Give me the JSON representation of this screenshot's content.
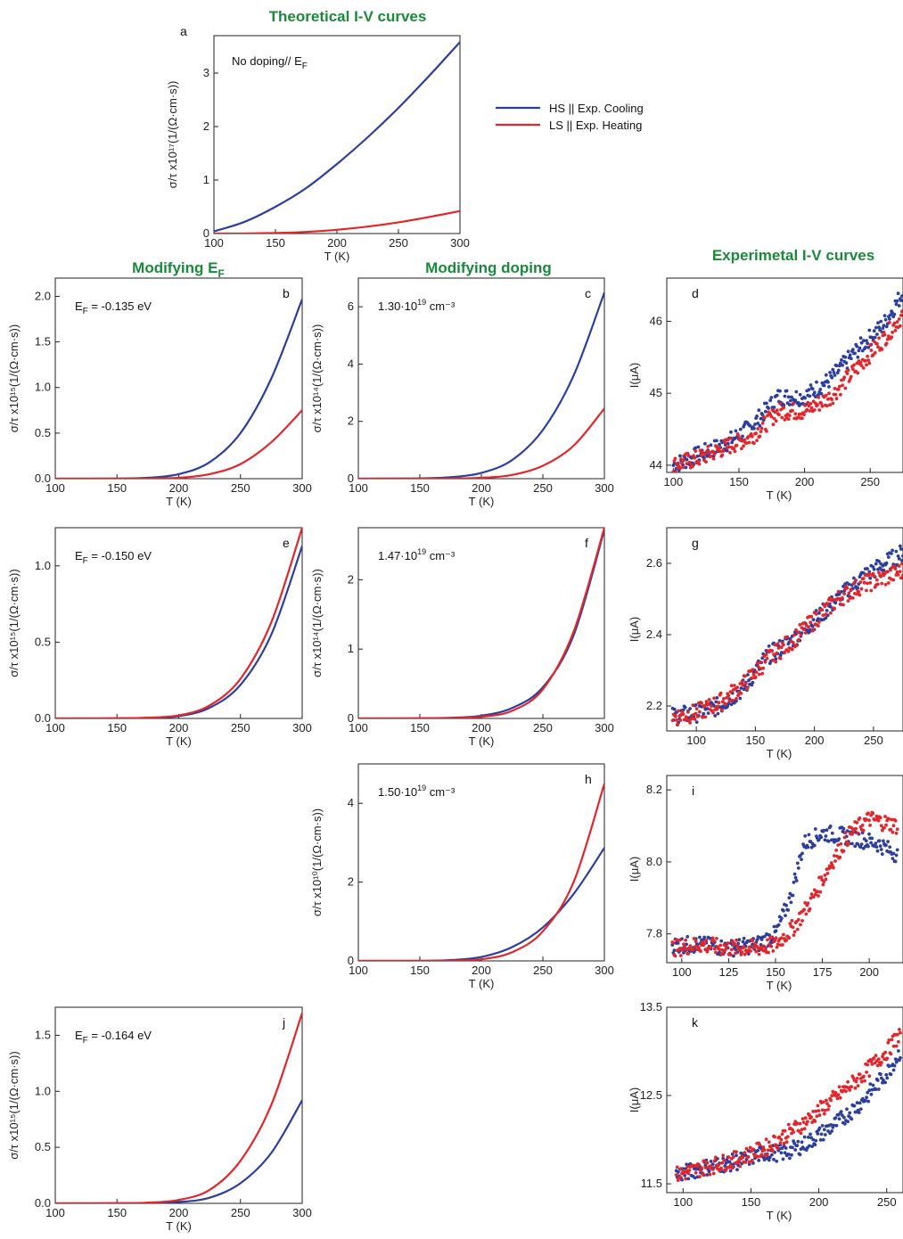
{
  "titles": {
    "theoretical": "Theoretical I-V curves",
    "modifying_ef": "Modifying E",
    "modifying_ef_sub": "F",
    "modifying_doping": "Modifying doping",
    "experimental": "Experimetal I-V curves"
  },
  "legend": {
    "hs": "HS  || Exp. Cooling",
    "ls": "LS  || Exp. Heating",
    "hs_color": "#2c3f9e",
    "ls_color": "#e3262b"
  },
  "chart_data": [
    {
      "id": "a",
      "type": "line",
      "label": "a",
      "annotation": "No doping// E",
      "annotation_sub": "F",
      "xlabel": "T (K)",
      "ylabel": "σ/τ x10¹⁷(1/(Ω·cm·s))",
      "xlim": [
        100,
        300
      ],
      "ylim": [
        0,
        3.7
      ],
      "xticks": [
        100,
        150,
        200,
        250,
        300
      ],
      "yticks": [
        0,
        1,
        2,
        3
      ],
      "series": [
        {
          "name": "HS",
          "color": "#2c3f9e",
          "x": [
            100,
            125,
            150,
            175,
            200,
            225,
            250,
            275,
            300
          ],
          "y": [
            0.04,
            0.22,
            0.5,
            0.85,
            1.3,
            1.8,
            2.35,
            2.95,
            3.58
          ]
        },
        {
          "name": "LS",
          "color": "#e3262b",
          "x": [
            100,
            125,
            150,
            175,
            200,
            225,
            250,
            275,
            300
          ],
          "y": [
            0.0,
            0.0,
            0.01,
            0.03,
            0.07,
            0.13,
            0.21,
            0.31,
            0.42
          ]
        }
      ]
    },
    {
      "id": "b",
      "type": "line",
      "label": "b",
      "annotation": "E",
      "annotation_sub": "F",
      "annotation_rest": " = -0.135 eV",
      "xlabel": "T (K)",
      "ylabel": "σ/τ x10¹⁵(1/(Ω·cm·s))",
      "xlim": [
        100,
        300
      ],
      "ylim": [
        0,
        2.2
      ],
      "xticks": [
        100,
        150,
        200,
        250,
        300
      ],
      "yticks": [
        0.0,
        0.5,
        1.0,
        1.5,
        2.0
      ],
      "series": [
        {
          "name": "HS",
          "color": "#2c3f9e",
          "x": [
            100,
            150,
            175,
            200,
            225,
            250,
            275,
            300
          ],
          "y": [
            0,
            0.002,
            0.01,
            0.05,
            0.18,
            0.5,
            1.1,
            1.97
          ]
        },
        {
          "name": "LS",
          "color": "#e3262b",
          "x": [
            100,
            150,
            175,
            200,
            225,
            250,
            275,
            300
          ],
          "y": [
            0,
            0,
            0.002,
            0.01,
            0.05,
            0.16,
            0.4,
            0.75
          ]
        }
      ]
    },
    {
      "id": "c",
      "type": "line",
      "label": "c",
      "annotation": "1.30·10",
      "annotation_sup": "19",
      "annotation_rest": " cm⁻³",
      "xlabel": "T (K)",
      "ylabel": "σ/τ x10¹⁴(1/(Ω·cm·s))",
      "xlim": [
        100,
        300
      ],
      "ylim": [
        0,
        7
      ],
      "xticks": [
        100,
        150,
        200,
        250,
        300
      ],
      "yticks": [
        0,
        2,
        4,
        6
      ],
      "series": [
        {
          "name": "HS",
          "color": "#2c3f9e",
          "x": [
            100,
            150,
            175,
            200,
            225,
            250,
            275,
            300
          ],
          "y": [
            0,
            0.01,
            0.05,
            0.2,
            0.65,
            1.7,
            3.6,
            6.5
          ]
        },
        {
          "name": "LS",
          "color": "#e3262b",
          "x": [
            100,
            150,
            175,
            200,
            225,
            250,
            275,
            300
          ],
          "y": [
            0,
            0,
            0.005,
            0.03,
            0.13,
            0.45,
            1.15,
            2.45
          ]
        }
      ]
    },
    {
      "id": "d",
      "type": "scatter",
      "label": "d",
      "xlabel": "T (K)",
      "ylabel": "I(μA)",
      "xlim": [
        95,
        275
      ],
      "ylim": [
        43.9,
        46.6
      ],
      "xticks": [
        100,
        150,
        200,
        250
      ],
      "yticks": [
        44,
        45,
        46
      ],
      "series": [
        {
          "name": "HS",
          "color": "#2c3f9e",
          "x": [
            100,
            120,
            140,
            160,
            180,
            200,
            220,
            240,
            260,
            275
          ],
          "y": [
            44.0,
            44.15,
            44.3,
            44.55,
            44.95,
            44.95,
            45.2,
            45.6,
            45.95,
            46.4
          ]
        },
        {
          "name": "LS",
          "color": "#e3262b",
          "x": [
            100,
            120,
            140,
            160,
            180,
            200,
            220,
            240,
            260,
            275
          ],
          "y": [
            44.0,
            44.1,
            44.25,
            44.4,
            44.75,
            44.75,
            44.95,
            45.35,
            45.75,
            46.1
          ]
        }
      ]
    },
    {
      "id": "e",
      "type": "line",
      "label": "e",
      "annotation": "E",
      "annotation_sub": "F",
      "annotation_rest": " = -0.150 eV",
      "xlabel": "T (K)",
      "ylabel": "σ/τ x10¹⁵(1/(Ω·cm·s))",
      "xlim": [
        100,
        300
      ],
      "ylim": [
        0,
        1.25
      ],
      "xticks": [
        100,
        150,
        200,
        250,
        300
      ],
      "yticks": [
        0.0,
        0.5,
        1.0
      ],
      "series": [
        {
          "name": "HS",
          "color": "#2c3f9e",
          "x": [
            100,
            150,
            175,
            200,
            225,
            250,
            275,
            300
          ],
          "y": [
            0,
            0.001,
            0.004,
            0.015,
            0.07,
            0.22,
            0.55,
            1.13
          ]
        },
        {
          "name": "LS",
          "color": "#e3262b",
          "x": [
            100,
            150,
            175,
            200,
            225,
            250,
            275,
            300
          ],
          "y": [
            0,
            0.001,
            0.005,
            0.02,
            0.085,
            0.26,
            0.63,
            1.25
          ]
        }
      ]
    },
    {
      "id": "f",
      "type": "line",
      "label": "f",
      "annotation": "1.47·10",
      "annotation_sup": "19",
      "annotation_rest": " cm⁻³",
      "xlabel": "T (K)",
      "ylabel": "σ/τ x10¹⁴(1/(Ω·cm·s))",
      "xlim": [
        100,
        300
      ],
      "ylim": [
        0,
        2.75
      ],
      "xticks": [
        100,
        150,
        200,
        250,
        300
      ],
      "yticks": [
        0,
        1,
        2
      ],
      "series": [
        {
          "name": "HS",
          "color": "#2c3f9e",
          "x": [
            100,
            150,
            175,
            200,
            225,
            250,
            275,
            300
          ],
          "y": [
            0,
            0.002,
            0.01,
            0.04,
            0.15,
            0.45,
            1.2,
            2.72
          ]
        },
        {
          "name": "LS",
          "color": "#e3262b",
          "x": [
            100,
            150,
            175,
            200,
            225,
            250,
            275,
            300
          ],
          "y": [
            0,
            0.001,
            0.005,
            0.025,
            0.11,
            0.42,
            1.25,
            2.75
          ]
        }
      ]
    },
    {
      "id": "g",
      "type": "scatter",
      "label": "g",
      "xlabel": "T (K)",
      "ylabel": "I(μA)",
      "xlim": [
        75,
        275
      ],
      "ylim": [
        2.13,
        2.7
      ],
      "xticks": [
        100,
        150,
        200,
        250
      ],
      "yticks": [
        2.2,
        2.4,
        2.6
      ],
      "series": [
        {
          "name": "HS",
          "color": "#2c3f9e",
          "x": [
            80,
            100,
            120,
            140,
            160,
            180,
            200,
            220,
            240,
            260,
            275
          ],
          "y": [
            2.17,
            2.18,
            2.2,
            2.25,
            2.34,
            2.38,
            2.44,
            2.5,
            2.56,
            2.6,
            2.63
          ]
        },
        {
          "name": "LS",
          "color": "#e3262b",
          "x": [
            80,
            100,
            120,
            140,
            160,
            180,
            200,
            220,
            240,
            260,
            275
          ],
          "y": [
            2.17,
            2.18,
            2.21,
            2.26,
            2.33,
            2.38,
            2.44,
            2.5,
            2.54,
            2.56,
            2.58
          ]
        }
      ]
    },
    {
      "id": "h",
      "type": "line",
      "label": "h",
      "annotation": "1.50·10",
      "annotation_sup": "19",
      "annotation_rest": " cm⁻³",
      "xlabel": "T (K)",
      "ylabel": "σ/τ x10¹⁰(1/(Ω·cm·s))",
      "xlim": [
        100,
        300
      ],
      "ylim": [
        0,
        5
      ],
      "xticks": [
        100,
        150,
        200,
        250,
        300
      ],
      "yticks": [
        0,
        2,
        4
      ],
      "series": [
        {
          "name": "HS",
          "color": "#2c3f9e",
          "x": [
            100,
            150,
            175,
            200,
            225,
            250,
            275,
            300
          ],
          "y": [
            0,
            0.003,
            0.02,
            0.1,
            0.35,
            0.85,
            1.7,
            2.87
          ]
        },
        {
          "name": "LS",
          "color": "#e3262b",
          "x": [
            100,
            150,
            175,
            200,
            225,
            250,
            275,
            300
          ],
          "y": [
            0,
            0.001,
            0.005,
            0.04,
            0.22,
            0.75,
            2.0,
            4.5
          ]
        }
      ]
    },
    {
      "id": "i",
      "type": "scatter",
      "label": "i",
      "xlabel": "T (K)",
      "ylabel": "I(μA)",
      "xlim": [
        92,
        218
      ],
      "ylim": [
        7.72,
        8.24
      ],
      "xticks": [
        100,
        125,
        150,
        175,
        200
      ],
      "yticks": [
        7.8,
        8.0,
        8.2
      ],
      "series": [
        {
          "name": "HS",
          "color": "#2c3f9e",
          "x": [
            95,
            110,
            125,
            140,
            150,
            158,
            165,
            175,
            190,
            205,
            215
          ],
          "y": [
            7.77,
            7.77,
            7.76,
            7.77,
            7.8,
            7.9,
            8.05,
            8.08,
            8.07,
            8.05,
            8.02
          ]
        },
        {
          "name": "LS",
          "color": "#e3262b",
          "x": [
            95,
            110,
            125,
            140,
            150,
            160,
            170,
            180,
            190,
            200,
            215
          ],
          "y": [
            7.76,
            7.77,
            7.76,
            7.76,
            7.77,
            7.82,
            7.9,
            8.0,
            8.08,
            8.12,
            8.1
          ]
        }
      ]
    },
    {
      "id": "j",
      "type": "line",
      "label": "j",
      "annotation": "E",
      "annotation_sub": "F",
      "annotation_rest": " = -0.164 eV",
      "xlabel": "T (K)",
      "ylabel": "σ/τ x10¹⁵(1/(Ω·cm·s))",
      "xlim": [
        100,
        300
      ],
      "ylim": [
        0,
        1.75
      ],
      "xticks": [
        100,
        150,
        200,
        250,
        300
      ],
      "yticks": [
        0.0,
        0.5,
        1.0,
        1.5
      ],
      "series": [
        {
          "name": "HS",
          "color": "#2c3f9e",
          "x": [
            100,
            150,
            175,
            200,
            225,
            250,
            275,
            300
          ],
          "y": [
            0,
            0.001,
            0.003,
            0.012,
            0.05,
            0.18,
            0.45,
            0.92
          ]
        },
        {
          "name": "LS",
          "color": "#e3262b",
          "x": [
            100,
            150,
            175,
            200,
            225,
            250,
            275,
            300
          ],
          "y": [
            0,
            0.001,
            0.006,
            0.03,
            0.12,
            0.38,
            0.88,
            1.7
          ]
        }
      ]
    },
    {
      "id": "k",
      "type": "scatter",
      "label": "k",
      "xlabel": "T (K)",
      "ylabel": "I(μA)",
      "xlim": [
        88,
        262
      ],
      "ylim": [
        11.4,
        13.5
      ],
      "xticks": [
        100,
        150,
        200,
        250
      ],
      "yticks": [
        11.5,
        12.5,
        13.5
      ],
      "ytick_labels": [
        "11.5",
        "12.5",
        "13.5"
      ],
      "series": [
        {
          "name": "HS",
          "color": "#2c3f9e",
          "x": [
            95,
            120,
            140,
            160,
            175,
            190,
            210,
            230,
            250,
            260
          ],
          "y": [
            11.6,
            11.7,
            11.75,
            11.85,
            11.85,
            11.95,
            12.15,
            12.4,
            12.75,
            13.0
          ]
        },
        {
          "name": "LS",
          "color": "#e3262b",
          "x": [
            95,
            120,
            140,
            160,
            175,
            190,
            210,
            230,
            250,
            260
          ],
          "y": [
            11.6,
            11.7,
            11.78,
            11.9,
            12.05,
            12.2,
            12.45,
            12.7,
            13.0,
            13.2
          ]
        }
      ]
    }
  ]
}
